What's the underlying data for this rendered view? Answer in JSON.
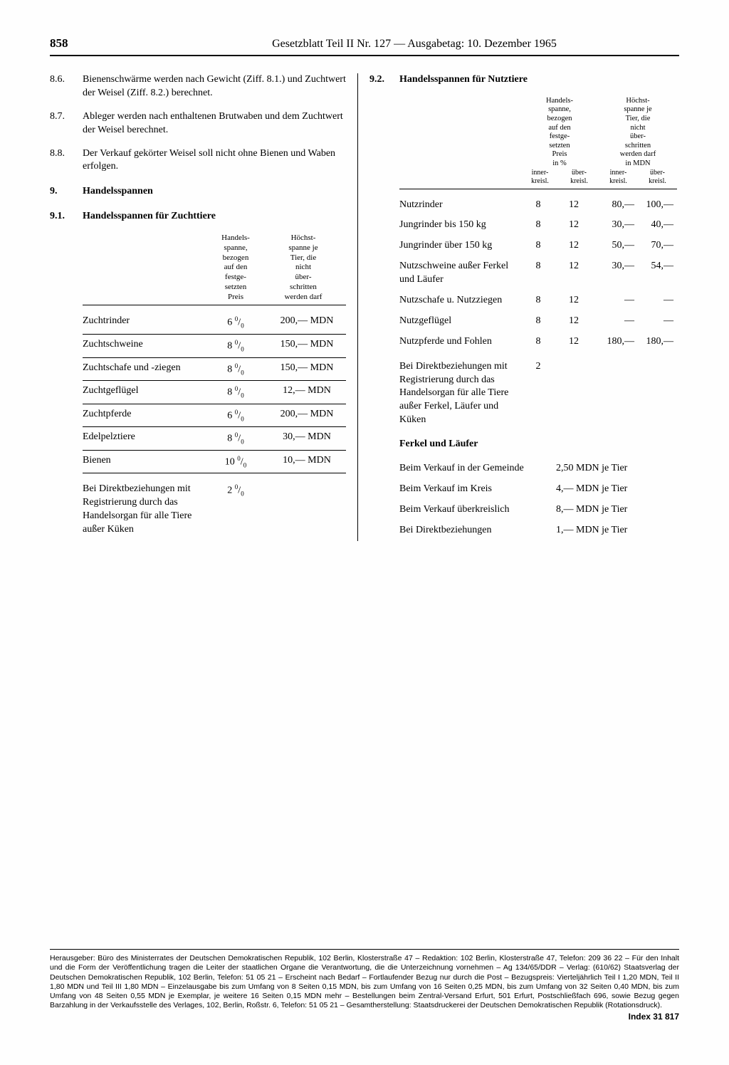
{
  "page_number": "858",
  "header_title": "Gesetzblatt Teil II Nr. 127 — Ausgabetag: 10. Dezember 1965",
  "left": {
    "items": [
      {
        "num": "8.6.",
        "text": "Bienenschwärme werden nach Gewicht (Ziff. 8.1.) und Zuchtwert der Weisel (Ziff. 8.2.) berechnet."
      },
      {
        "num": "8.7.",
        "text": "Ableger werden nach enthaltenen Brutwaben und dem Zuchtwert der Weisel berechnet."
      },
      {
        "num": "8.8.",
        "text": "Der Verkauf gekörter Weisel soll nicht ohne Bienen und Waben erfolgen."
      }
    ],
    "s9": {
      "num": "9.",
      "title": "Handelsspannen"
    },
    "s91": {
      "num": "9.1.",
      "title": "Handelsspannen für Zuchttiere"
    },
    "th91": {
      "c2": "Handels-\nspanne,\nbezogen\nauf den\nfestge-\nsetzten\nPreis",
      "c3": "Höchst-\nspanne je\nTier, die\nnicht\nüber-\nschritten\nwerden darf"
    },
    "rows91": [
      {
        "c1": "Zuchtrinder",
        "c2": "6 %",
        "c3": "200,— MDN"
      },
      {
        "c1": "Zuchtschweine",
        "c2": "8 %",
        "c3": "150,— MDN"
      },
      {
        "c1": "Zuchtschafe und -ziegen",
        "c2": "8 %",
        "c3": "150,— MDN"
      },
      {
        "c1": "Zuchtgeflügel",
        "c2": "8 %",
        "c3": "12,— MDN"
      },
      {
        "c1": "Zuchtpferde",
        "c2": "6 %",
        "c3": "200,— MDN"
      },
      {
        "c1": "Edelpelztiere",
        "c2": "8 %",
        "c3": "30,— MDN"
      },
      {
        "c1": "Bienen",
        "c2": "10 %",
        "c3": "10,— MDN"
      }
    ],
    "extra91": {
      "c1": "Bei Direktbeziehungen mit Registrierung durch das Handelsorgan für alle Tiere außer Küken",
      "c2": "2 %",
      "c3": ""
    }
  },
  "right": {
    "s92": {
      "num": "9.2.",
      "title": "Handelsspannen für Nutztiere"
    },
    "th92": {
      "g1": "Handels-\nspanne,\nbezogen\nauf den\nfestge-\nsetzten\nPreis\nin %",
      "g2": "Höchst-\nspanne je\nTier, die\nnicht\nüber-\nschritten\nwerden darf\nin MDN",
      "sub1a": "inner-\nkreisl.",
      "sub1b": "über-\nkreisl.",
      "sub2a": "inner-\nkreisl.",
      "sub2b": "über-\nkreisl."
    },
    "rows92": [
      {
        "c1": "Nutzrinder",
        "c2": "8",
        "c3": "12",
        "c4": "80,—",
        "c5": "100,—"
      },
      {
        "c1": "Jungrinder bis 150 kg",
        "c2": "8",
        "c3": "12",
        "c4": "30,—",
        "c5": "40,—"
      },
      {
        "c1": "Jungrinder über 150 kg",
        "c2": "8",
        "c3": "12",
        "c4": "50,—",
        "c5": "70,—"
      },
      {
        "c1": "Nutzschweine außer Ferkel und Läufer",
        "c2": "8",
        "c3": "12",
        "c4": "30,—",
        "c5": "54,—"
      },
      {
        "c1": "Nutzschafe u. Nutzziegen",
        "c2": "8",
        "c3": "12",
        "c4": "—",
        "c5": "—"
      },
      {
        "c1": "Nutzgeflügel",
        "c2": "8",
        "c3": "12",
        "c4": "—",
        "c5": "—"
      },
      {
        "c1": "Nutzpferde und Fohlen",
        "c2": "8",
        "c3": "12",
        "c4": "180,—",
        "c5": "180,—"
      }
    ],
    "extra92": {
      "c1": "Bei Direktbeziehungen mit Registrierung durch das Handelsorgan für alle Tiere außer Ferkel, Läufer und Küken",
      "c2": "2",
      "c3": "",
      "c4": "",
      "c5": ""
    },
    "fl_head": "Ferkel und Läufer",
    "fl_rows": [
      {
        "c1": "Beim Verkauf in der Gemeinde",
        "c2": "2,50 MDN je Tier"
      },
      {
        "c1": "Beim Verkauf im Kreis",
        "c2": "4,— MDN je Tier"
      },
      {
        "c1": "Beim Verkauf überkreislich",
        "c2": "8,— MDN je Tier"
      },
      {
        "c1": "Bei Direktbeziehungen",
        "c2": "1,— MDN je Tier"
      }
    ]
  },
  "imprint": "Herausgeber: Büro des Ministerrates der Deutschen Demokratischen Republik, 102 Berlin, Klosterstraße 47 – Redaktion: 102 Berlin, Klosterstraße 47, Telefon: 209 36 22 – Für den Inhalt und die Form der Veröffentlichung tragen die Leiter der staatlichen Organe die Verantwortung, die die Unterzeichnung vornehmen – Ag 134/65/DDR – Verlag: (610/62) Staatsverlag der Deutschen Demokratischen Republik, 102 Berlin, Telefon: 51 05 21 – Erscheint nach Bedarf – Fortlaufender Bezug nur durch die Post – Bezugspreis: Vierteljährlich Teil I 1,20 MDN, Teil II 1,80 MDN und Teil III 1,80 MDN – Einzelausgabe bis zum Umfang von 8 Seiten 0,15 MDN, bis zum Umfang von 16 Seiten 0,25 MDN, bis zum Umfang von 32 Seiten 0,40 MDN, bis zum Umfang von 48 Seiten 0,55 MDN je Exemplar, je weitere 16 Seiten 0,15 MDN mehr – Bestellungen beim Zentral-Versand Erfurt, 501 Erfurt, Postschließfach 696, sowie Bezug gegen Barzahlung in der Verkaufsstelle des Verlages, 102, Berlin, Roßstr. 6, Telefon: 51 05 21 – Gesamtherstellung: Staatsdruckerei der Deutschen Demokratischen Republik (Rotationsdruck).",
  "index": "Index 31 817"
}
